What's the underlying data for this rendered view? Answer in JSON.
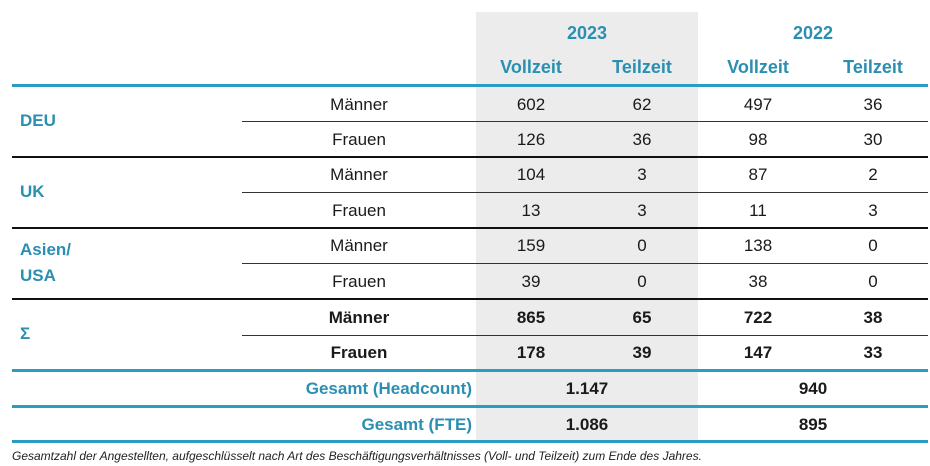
{
  "header": {
    "years": [
      "2023",
      "2022"
    ],
    "subheaders": [
      "Vollzeit",
      "Teilzeit",
      "Vollzeit",
      "Teilzeit"
    ]
  },
  "regions": [
    {
      "label": "DEU",
      "rows": [
        {
          "gender": "Männer",
          "values": [
            "602",
            "62",
            "497",
            "36"
          ]
        },
        {
          "gender": "Frauen",
          "values": [
            "126",
            "36",
            "98",
            "30"
          ]
        }
      ]
    },
    {
      "label": "UK",
      "rows": [
        {
          "gender": "Männer",
          "values": [
            "104",
            "3",
            "87",
            "2"
          ]
        },
        {
          "gender": "Frauen",
          "values": [
            "13",
            "3",
            "11",
            "3"
          ]
        }
      ]
    },
    {
      "label_lines": [
        "Asien/",
        "USA"
      ],
      "rows": [
        {
          "gender": "Männer",
          "values": [
            "159",
            "0",
            "138",
            "0"
          ]
        },
        {
          "gender": "Frauen",
          "values": [
            "39",
            "0",
            "38",
            "0"
          ]
        }
      ]
    },
    {
      "label": "Σ",
      "rows": [
        {
          "gender": "Männer",
          "values": [
            "865",
            "65",
            "722",
            "38"
          ]
        },
        {
          "gender": "Frauen",
          "values": [
            "178",
            "39",
            "147",
            "33"
          ]
        }
      ]
    }
  ],
  "totals": [
    {
      "label": "Gesamt (Headcount)",
      "values": [
        "1.147",
        "940"
      ]
    },
    {
      "label": "Gesamt (FTE)",
      "values": [
        "1.086",
        "895"
      ]
    }
  ],
  "footnote": "Gesamtzahl der Angestellten, aufgeschlüsselt nach Art des Beschäftigungsverhältnisses (Voll- und Teilzeit) zum Ende des Jahres.",
  "colors": {
    "accent": "#2a8fb0",
    "shade": "#ececec"
  }
}
